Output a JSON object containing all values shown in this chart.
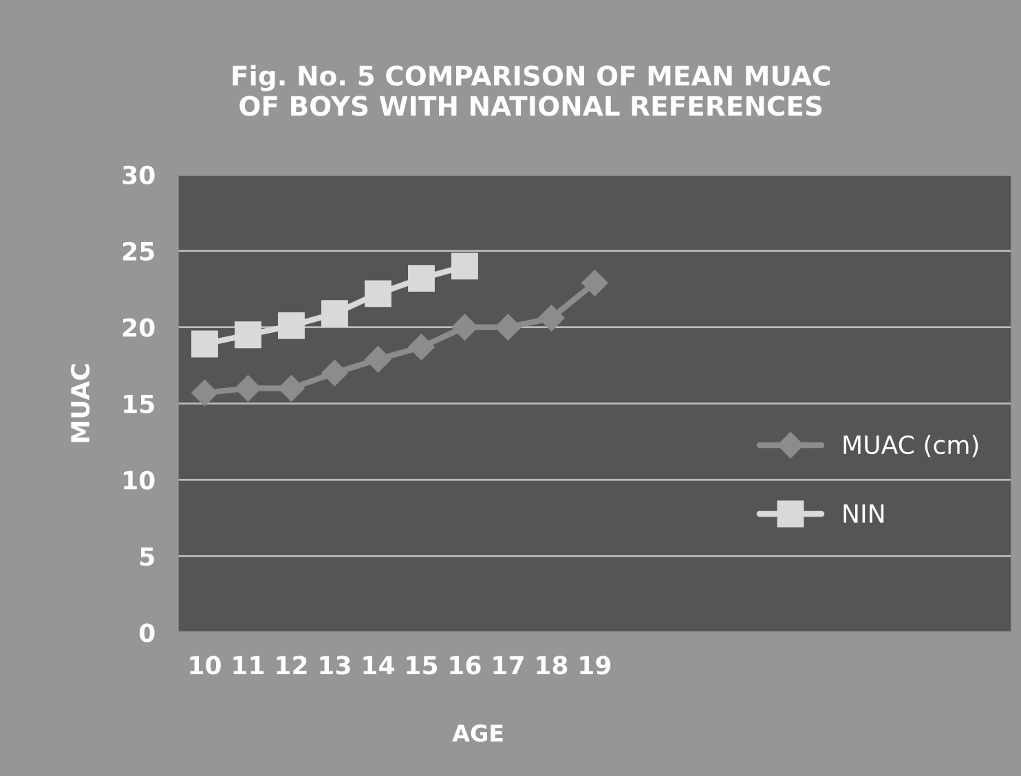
{
  "chart_data": {
    "type": "line",
    "title": "Fig. No. 5 COMPARISON OF MEAN MUAC\nOF BOYS WITH NATIONAL REFERENCES",
    "xlabel": "AGE",
    "ylabel": "MUAC",
    "categories": [
      "10",
      "11",
      "12",
      "13",
      "14",
      "15",
      "16",
      "17",
      "18",
      "19"
    ],
    "series": [
      {
        "name": "MUAC (cm)",
        "color": "#8c8c8c",
        "marker": "diamond",
        "values": [
          15.7,
          16.0,
          16.0,
          17.0,
          17.9,
          18.7,
          20.0,
          20.0,
          20.6,
          22.9
        ]
      },
      {
        "name": "NIN",
        "color": "#d9d9d9",
        "marker": "square",
        "values": [
          18.9,
          19.5,
          20.1,
          20.9,
          22.2,
          23.2,
          24.0,
          null,
          null,
          null
        ]
      }
    ],
    "ylim": [
      0,
      30
    ],
    "yticks": [
      0,
      5,
      10,
      15,
      20,
      25,
      30
    ],
    "grid": "y",
    "legend": "right",
    "line_style": "solid"
  }
}
